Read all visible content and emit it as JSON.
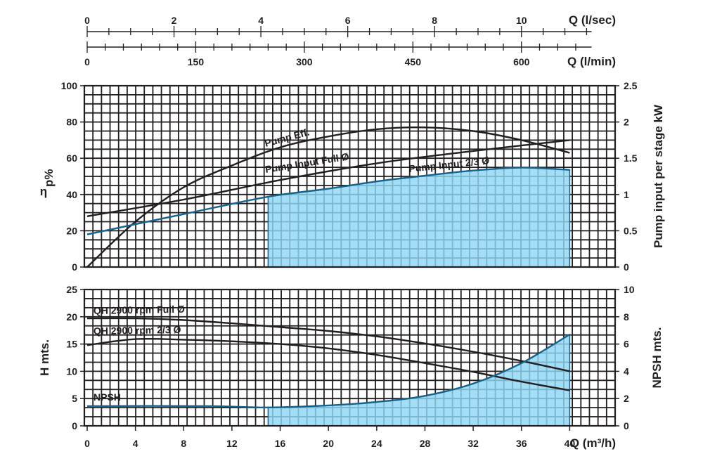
{
  "colors": {
    "ink": "#231f20",
    "fill": "#8fd6f4",
    "fill_edge": "#16628a",
    "grid_bg": "#ffffff"
  },
  "chart_data": [
    {
      "type": "axis",
      "xlabel": "Q (l/sec)",
      "xticks": [
        0,
        2,
        4,
        6,
        8,
        10
      ],
      "xlim": [
        0,
        11.55
      ]
    },
    {
      "type": "axis",
      "xlabel": "Q (l/min)",
      "xticks": [
        0,
        150,
        300,
        450,
        600
      ],
      "xlim": [
        0,
        693
      ]
    },
    {
      "type": "line",
      "ylabel_left": "ηp%",
      "ylabel_right": "Pump input per stage kW",
      "xlim": [
        0,
        41.6
      ],
      "ylim_left": [
        0,
        100
      ],
      "ylim_right": [
        0,
        2.5
      ],
      "yticks_left": [
        0,
        20,
        40,
        60,
        80,
        100
      ],
      "yticks_right": [
        0,
        0.5,
        1,
        1.5,
        2,
        2.5
      ],
      "grid": true,
      "series": [
        {
          "name": "Pump Eff.",
          "axis": "left",
          "x": [
            0,
            4,
            8,
            12,
            16,
            20,
            24,
            28,
            32,
            36,
            40
          ],
          "y": [
            0,
            25,
            44,
            56,
            66,
            72,
            76,
            77,
            75,
            70,
            63
          ]
        },
        {
          "name": "Pump Input Full Ø",
          "axis": "right",
          "x": [
            0,
            8,
            16,
            24,
            32,
            40
          ],
          "y": [
            0.7,
            0.93,
            1.2,
            1.43,
            1.6,
            1.75
          ]
        },
        {
          "name": "Pump Input 2/3 Ø",
          "axis": "right",
          "x": [
            0,
            8,
            15,
            20,
            24,
            28,
            32,
            36,
            40
          ],
          "y": [
            0.45,
            0.73,
            0.97,
            1.08,
            1.18,
            1.26,
            1.33,
            1.37,
            1.34
          ],
          "filled_from_x": 15
        }
      ]
    },
    {
      "type": "line",
      "xlabel": "Q (m³/h)",
      "ylabel_left": "H mts.",
      "ylabel_right": "NPSH mts.",
      "xticks": [
        0,
        4,
        8,
        12,
        16,
        20,
        24,
        28,
        32,
        36,
        40
      ],
      "xlim": [
        0,
        41.6
      ],
      "ylim_left": [
        0,
        25
      ],
      "ylim_right": [
        0,
        10
      ],
      "yticks_left": [
        0,
        5,
        10,
        15,
        20,
        25
      ],
      "yticks_right": [
        0,
        2,
        4,
        6,
        8,
        10
      ],
      "grid": true,
      "series": [
        {
          "name": "QH 2900 rpm Full Ø",
          "axis": "left",
          "x": [
            0,
            4,
            8,
            12,
            16,
            20,
            24,
            28,
            32,
            36,
            40
          ],
          "y": [
            19.7,
            19.7,
            19.4,
            18.8,
            18.1,
            17.4,
            16.4,
            15.1,
            13.6,
            11.9,
            10.0
          ]
        },
        {
          "name": "QH 2900 rpm 2/3 Ø",
          "axis": "left",
          "x": [
            0,
            4,
            8,
            12,
            16,
            20,
            24,
            28,
            32,
            36,
            40
          ],
          "y": [
            14.8,
            15.9,
            15.8,
            15.5,
            15.0,
            14.2,
            13.0,
            11.5,
            9.9,
            8.1,
            6.5
          ]
        },
        {
          "name": "NPSH",
          "axis": "right",
          "x": [
            0,
            10,
            15,
            20,
            24,
            28,
            32,
            36,
            40
          ],
          "y": [
            1.45,
            1.45,
            1.35,
            1.5,
            1.75,
            2.2,
            3.1,
            4.6,
            6.7
          ],
          "filled_from_x": 15
        }
      ]
    }
  ]
}
